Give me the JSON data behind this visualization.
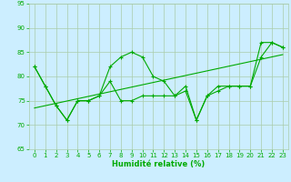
{
  "xlabel": "Humidité relative (%)",
  "bg_color": "#cceeff",
  "grid_color": "#aaccaa",
  "line_color": "#00aa00",
  "xlim": [
    -0.5,
    23.5
  ],
  "ylim": [
    65,
    95
  ],
  "yticks": [
    65,
    70,
    75,
    80,
    85,
    90,
    95
  ],
  "xticks": [
    0,
    1,
    2,
    3,
    4,
    5,
    6,
    7,
    8,
    9,
    10,
    11,
    12,
    13,
    14,
    15,
    16,
    17,
    18,
    19,
    20,
    21,
    22,
    23
  ],
  "series1": [
    82,
    78,
    74,
    71,
    75,
    75,
    76,
    82,
    84,
    85,
    84,
    80,
    79,
    76,
    78,
    71,
    76,
    78,
    78,
    78,
    78,
    87,
    87,
    86
  ],
  "series2": [
    82,
    78,
    74,
    71,
    75,
    75,
    76,
    79,
    75,
    75,
    76,
    76,
    76,
    76,
    77,
    71,
    76,
    77,
    78,
    78,
    78,
    84,
    87,
    86
  ],
  "trend_x": [
    0,
    23
  ],
  "trend_y": [
    73.5,
    84.5
  ],
  "xlabel_fontsize": 6,
  "tick_fontsize": 5
}
